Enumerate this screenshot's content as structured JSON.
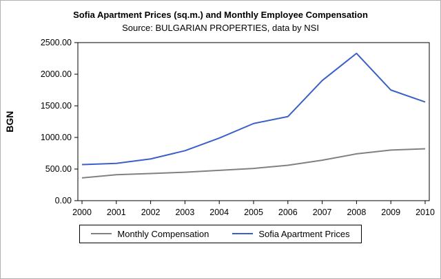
{
  "chart_data": {
    "type": "line",
    "title": "Sofia Apartment Prices (sq.m.) and Monthly Employee Compensation",
    "subtitle": "Source: BULGARIAN PROPERTIES, data by NSI",
    "ylabel": "BGN",
    "xlabel": "",
    "ylim": [
      0,
      2500
    ],
    "y_ticks": [
      0,
      500,
      1000,
      1500,
      2000,
      2500
    ],
    "y_tick_labels": [
      "0.00",
      "500.00",
      "1000.00",
      "1500.00",
      "2000.00",
      "2500.00"
    ],
    "categories": [
      "2000",
      "2001",
      "2002",
      "2003",
      "2004",
      "2005",
      "2006",
      "2007",
      "2008",
      "2009",
      "2010"
    ],
    "series": [
      {
        "name": "Monthly Compensation",
        "color": "#808080",
        "values": [
          360,
          410,
          430,
          450,
          480,
          510,
          560,
          640,
          740,
          800,
          820
        ]
      },
      {
        "name": "Sofia Apartment Prices",
        "color": "#3A5FC8",
        "values": [
          570,
          590,
          660,
          790,
          990,
          1220,
          1330,
          1900,
          2330,
          1750,
          1560
        ]
      }
    ],
    "grid": false,
    "legend_position": "bottom"
  }
}
